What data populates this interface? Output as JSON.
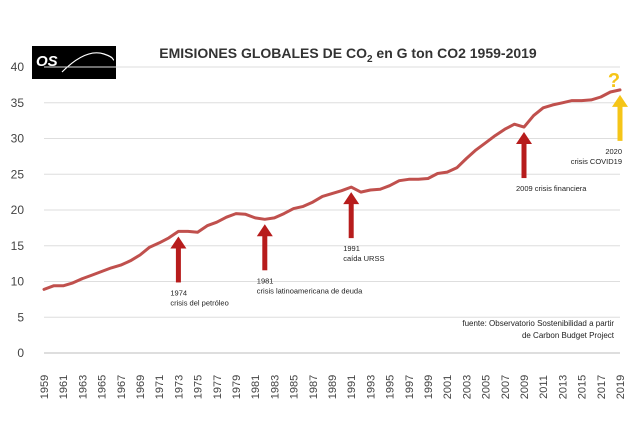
{
  "logo": {
    "text": "OS"
  },
  "chart_data": {
    "type": "line",
    "title_prefix": "EMISIONES GLOBALES DE CO",
    "title_sub": "2",
    "title_suffix": " en G ton CO2 1959-2019",
    "xlabel": "",
    "ylabel": "",
    "ylim": [
      0,
      40
    ],
    "yticks": [
      0,
      5,
      10,
      15,
      20,
      25,
      30,
      35,
      40
    ],
    "xticks": [
      "1959",
      "1961",
      "1963",
      "1965",
      "1967",
      "1969",
      "1971",
      "1973",
      "1975",
      "1977",
      "1979",
      "1981",
      "1983",
      "1985",
      "1987",
      "1989",
      "1991",
      "1993",
      "1995",
      "1997",
      "1999",
      "2001",
      "2003",
      "2005",
      "2007",
      "2009",
      "2011",
      "2013",
      "2015",
      "2017",
      "2019"
    ],
    "grid": true,
    "line_color": "#c0504d",
    "series": [
      {
        "x": [
          1959,
          1960,
          1961,
          1962,
          1963,
          1964,
          1965,
          1966,
          1967,
          1968,
          1969,
          1970,
          1971,
          1972,
          1973,
          1974,
          1975,
          1976,
          1977,
          1978,
          1979,
          1980,
          1981,
          1982,
          1983,
          1984,
          1985,
          1986,
          1987,
          1988,
          1989,
          1990,
          1991,
          1992,
          1993,
          1994,
          1995,
          1996,
          1997,
          1998,
          1999,
          2000,
          2001,
          2002,
          2003,
          2004,
          2005,
          2006,
          2007,
          2008,
          2009,
          2010,
          2011,
          2012,
          2013,
          2014,
          2015,
          2016,
          2017,
          2018,
          2019
        ],
        "values": [
          8.9,
          9.4,
          9.4,
          9.8,
          10.4,
          10.9,
          11.4,
          11.9,
          12.3,
          12.9,
          13.7,
          14.8,
          15.4,
          16.1,
          17.0,
          17.0,
          16.9,
          17.8,
          18.3,
          19.0,
          19.5,
          19.4,
          18.9,
          18.7,
          18.9,
          19.5,
          20.2,
          20.5,
          21.1,
          21.9,
          22.3,
          22.7,
          23.2,
          22.5,
          22.8,
          22.9,
          23.4,
          24.1,
          24.3,
          24.3,
          24.4,
          25.1,
          25.3,
          25.9,
          27.2,
          28.4,
          29.4,
          30.4,
          31.3,
          32.0,
          31.6,
          33.2,
          34.3,
          34.7,
          35.0,
          35.3,
          35.3,
          35.4,
          35.8,
          36.5,
          36.8
        ]
      }
    ],
    "annotations": [
      {
        "year": 1973,
        "lines": [
          "1974",
          "crisis del petróleo"
        ],
        "arrow_color": "#b71c1c"
      },
      {
        "year": 1982,
        "lines": [
          "1981",
          "crisis latinoamericana de deuda"
        ],
        "arrow_color": "#b71c1c"
      },
      {
        "year": 1991,
        "lines": [
          "1991",
          "caída URSS"
        ],
        "arrow_color": "#b71c1c"
      },
      {
        "year": 2009,
        "lines": [
          "2009 crisis financiera"
        ],
        "arrow_color": "#b71c1c"
      },
      {
        "year": 2019,
        "lines": [
          "2020",
          "crisis COVID19"
        ],
        "arrow_color": "#f5c518",
        "mark": "?"
      }
    ],
    "source": [
      "fuente: Observatorio Sostenibilidad a partir",
      "de Carbon Budget Project"
    ]
  }
}
